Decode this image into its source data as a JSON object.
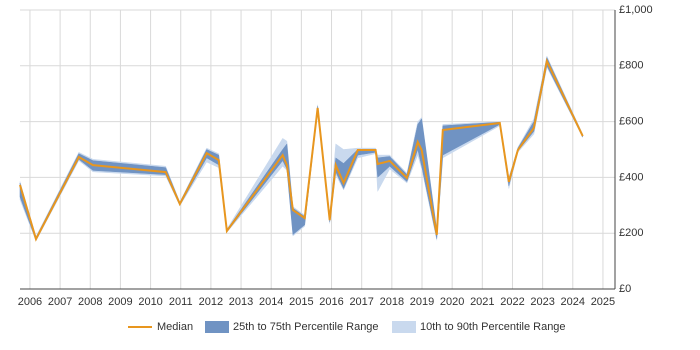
{
  "chart_data": {
    "type": "range-line",
    "x": [
      2005.67,
      2006.2,
      2007.62,
      2008.09,
      2010.5,
      2010.97,
      2011.86,
      2012.26,
      2012.53,
      2014.38,
      2014.52,
      2014.72,
      2015.11,
      2015.54,
      2015.94,
      2016.14,
      2016.4,
      2016.87,
      2017.46,
      2017.53,
      2017.93,
      2018.5,
      2018.86,
      2018.99,
      2019.49,
      2019.69,
      2021.58,
      2021.88,
      2022.18,
      2022.71,
      2023.14,
      2024.33
    ],
    "series": [
      {
        "name": "Median",
        "color": "#e8961e",
        "values": [
          373,
          179,
          473,
          444,
          419,
          305,
          487,
          462,
          208,
          480,
          444,
          283,
          254,
          649,
          247,
          444,
          380,
          498,
          498,
          448,
          459,
          398,
          527,
          498,
          194,
          570,
          595,
          384,
          498,
          577,
          817,
          548
        ]
      },
      {
        "name": "25th to 75th Percentile Range",
        "color": "#7093c3",
        "lower": [
          330,
          175,
          465,
          425,
          410,
          300,
          470,
          445,
          205,
          460,
          430,
          195,
          230,
          640,
          240,
          420,
          360,
          480,
          490,
          400,
          440,
          385,
          500,
          440,
          180,
          480,
          590,
          370,
          495,
          565,
          800,
          545
        ],
        "upper": [
          380,
          185,
          485,
          460,
          435,
          310,
          500,
          480,
          212,
          500,
          520,
          290,
          260,
          655,
          260,
          470,
          450,
          500,
          500,
          470,
          475,
          410,
          590,
          610,
          210,
          585,
          598,
          395,
          505,
          600,
          830,
          552
        ]
      },
      {
        "name": "10th to 90th Percentile Range",
        "color": "#c9d9ee",
        "lower": [
          320,
          172,
          460,
          420,
          405,
          298,
          455,
          435,
          203,
          440,
          425,
          190,
          225,
          635,
          235,
          410,
          355,
          470,
          485,
          350,
          430,
          380,
          480,
          430,
          175,
          470,
          585,
          360,
          490,
          555,
          795,
          543
        ],
        "upper": [
          385,
          188,
          490,
          465,
          440,
          312,
          505,
          485,
          215,
          540,
          530,
          295,
          265,
          660,
          265,
          520,
          500,
          505,
          505,
          480,
          480,
          415,
          600,
          615,
          215,
          590,
          600,
          400,
          508,
          610,
          835,
          555
        ]
      }
    ],
    "xlim": [
      2005.67,
      2025.4
    ],
    "xticks": [
      2006,
      2007,
      2008,
      2009,
      2010,
      2011,
      2012,
      2013,
      2014,
      2015,
      2016,
      2017,
      2018,
      2019,
      2020,
      2021,
      2022,
      2023,
      2024,
      2025
    ],
    "ylim": [
      0,
      1000
    ],
    "yticks": [
      {
        "value": 0,
        "label": "£0"
      },
      {
        "value": 200,
        "label": "£200"
      },
      {
        "value": 400,
        "label": "£400"
      },
      {
        "value": 600,
        "label": "£600"
      },
      {
        "value": 800,
        "label": "£800"
      },
      {
        "value": 1000,
        "label": "£1,000"
      }
    ],
    "grid": true
  }
}
